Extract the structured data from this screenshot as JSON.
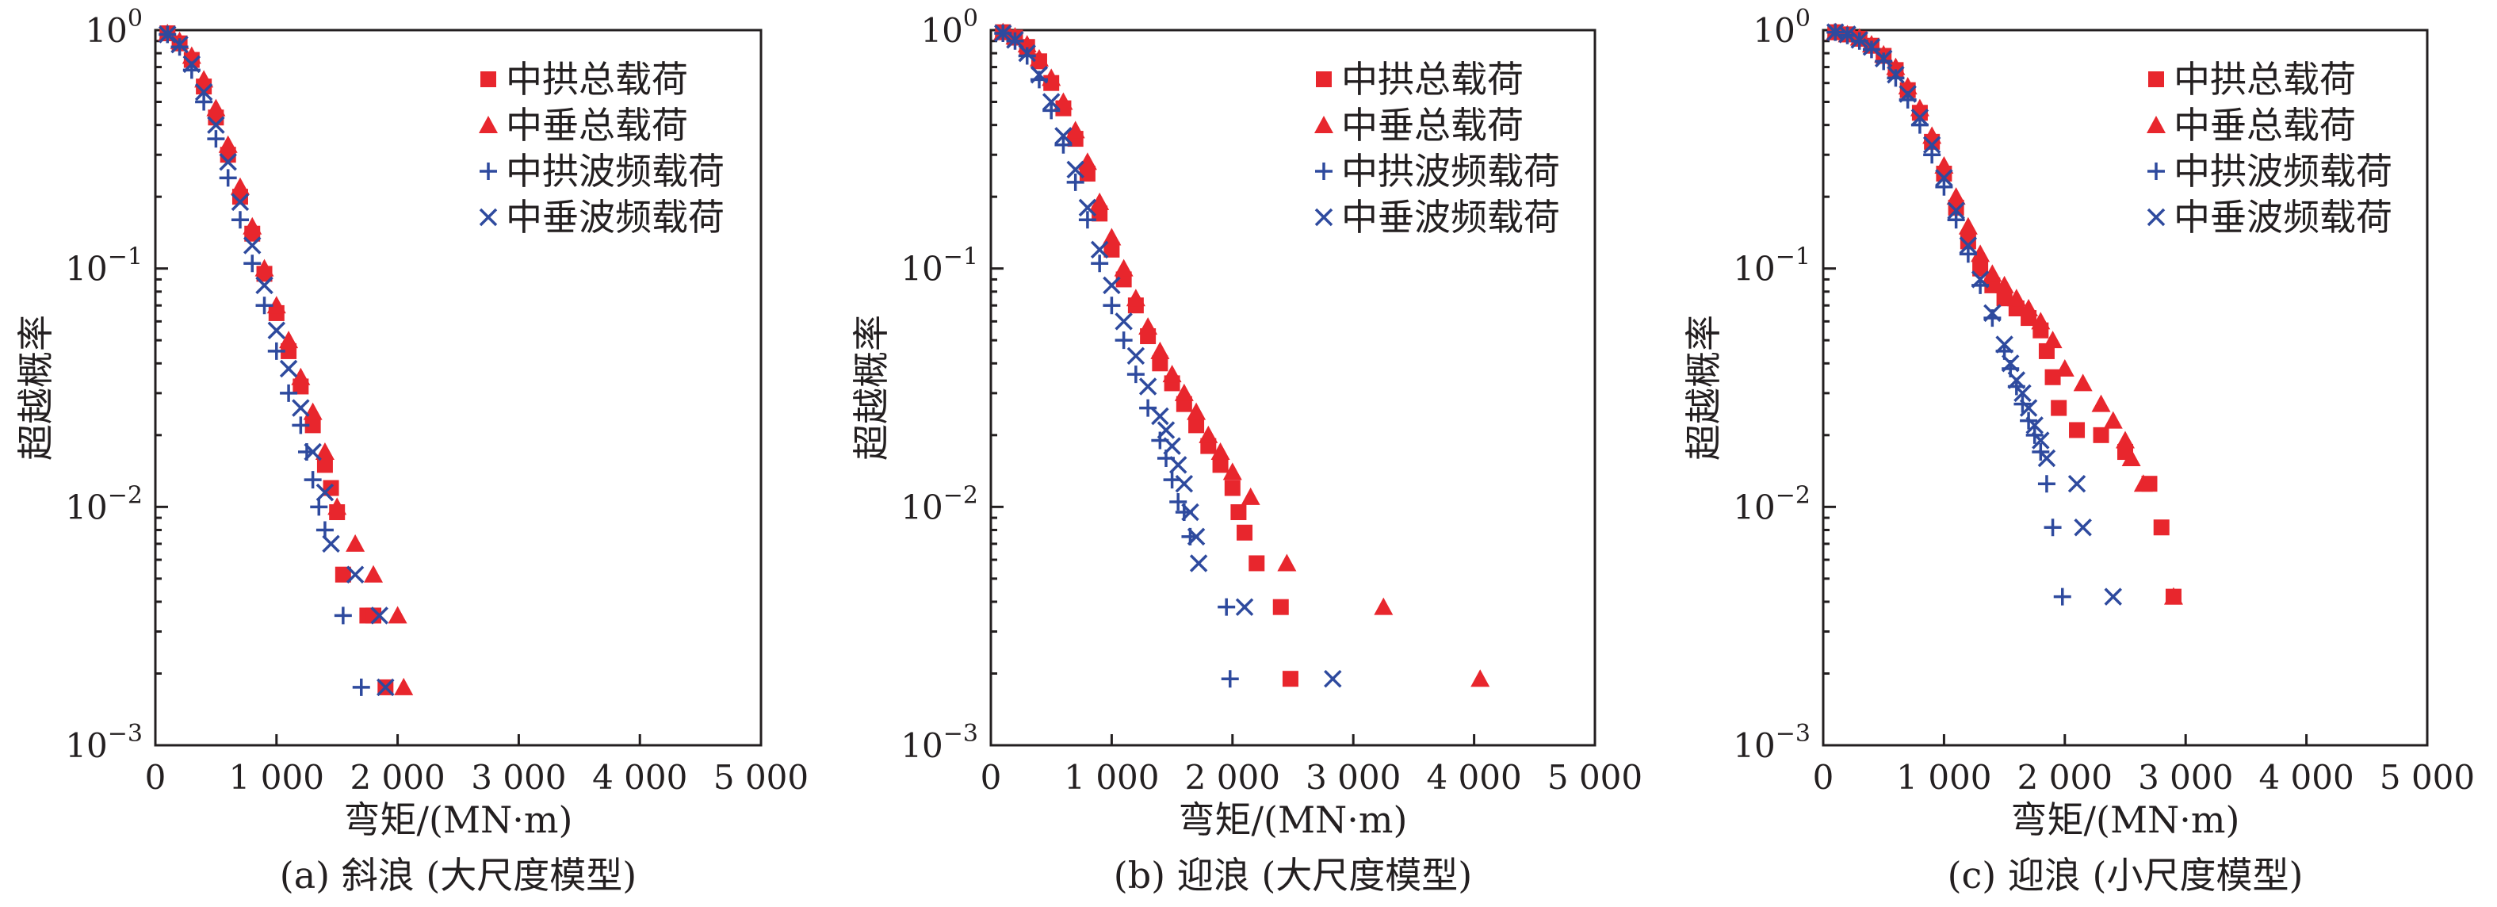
{
  "colors": {
    "total": "#e8262d",
    "wave": "#2e4a9e",
    "axis": "#231f20"
  },
  "legend": [
    "中拱总载荷",
    "中垂总载荷",
    "中拱波频载荷",
    "中垂波频载荷"
  ],
  "chart_data": [
    {
      "type": "scatter",
      "caption": "(a) 斜浪 (大尺度模型)",
      "xlabel": "弯矩/(MN·m)",
      "ylabel": "超越概率",
      "xlim": [
        0,
        5000
      ],
      "ylim": [
        0.001,
        1
      ],
      "yscale": "log",
      "xticks": [
        0,
        1000,
        2000,
        3000,
        4000,
        5000
      ],
      "xtick_labels": [
        "0",
        "1 000",
        "2 000",
        "3 000",
        "4 000",
        "5 000"
      ],
      "yticks": [
        0.001,
        0.01,
        0.1,
        1
      ],
      "ytick_labels": [
        {
          "base": "10",
          "exp": "−3"
        },
        {
          "base": "10",
          "exp": "−2"
        },
        {
          "base": "10",
          "exp": "−1"
        },
        {
          "base": "10",
          "exp": "0"
        }
      ],
      "legend_position": "top-right",
      "series": [
        {
          "name": "中拱总载荷",
          "marker": "square",
          "color": "#e8262d",
          "x": [
            100,
            200,
            300,
            400,
            500,
            600,
            700,
            800,
            900,
            1000,
            1100,
            1200,
            1300,
            1400,
            1450,
            1500,
            1550,
            1750,
            1800,
            1900
          ],
          "y": [
            0.97,
            0.88,
            0.75,
            0.58,
            0.43,
            0.3,
            0.2,
            0.14,
            0.095,
            0.065,
            0.045,
            0.032,
            0.022,
            0.015,
            0.012,
            0.0095,
            0.0052,
            0.0035,
            0.0035,
            0.00175
          ]
        },
        {
          "name": "中垂总载荷",
          "marker": "triangle",
          "color": "#e8262d",
          "x": [
            100,
            200,
            300,
            400,
            500,
            600,
            700,
            800,
            900,
            1000,
            1100,
            1200,
            1300,
            1400,
            1500,
            1650,
            1800,
            2000,
            2050
          ],
          "y": [
            0.97,
            0.9,
            0.78,
            0.62,
            0.47,
            0.33,
            0.22,
            0.15,
            0.1,
            0.07,
            0.05,
            0.035,
            0.025,
            0.017,
            0.01,
            0.007,
            0.0052,
            0.0035,
            0.00175
          ]
        },
        {
          "name": "中拱波频载荷",
          "marker": "plus",
          "color": "#2e4a9e",
          "x": [
            100,
            200,
            300,
            400,
            500,
            600,
            700,
            800,
            900,
            1000,
            1100,
            1200,
            1250,
            1300,
            1350,
            1400,
            1550,
            1700
          ],
          "y": [
            0.96,
            0.85,
            0.68,
            0.5,
            0.35,
            0.24,
            0.16,
            0.105,
            0.07,
            0.045,
            0.03,
            0.022,
            0.017,
            0.013,
            0.01,
            0.008,
            0.0035,
            0.00175
          ]
        },
        {
          "name": "中垂波频载荷",
          "marker": "x",
          "color": "#2e4a9e",
          "x": [
            100,
            200,
            300,
            400,
            500,
            600,
            700,
            800,
            900,
            1000,
            1100,
            1200,
            1300,
            1400,
            1450,
            1650,
            1850,
            1900
          ],
          "y": [
            0.96,
            0.87,
            0.72,
            0.55,
            0.4,
            0.28,
            0.19,
            0.125,
            0.085,
            0.055,
            0.038,
            0.026,
            0.017,
            0.0115,
            0.007,
            0.0052,
            0.0035,
            0.00175
          ]
        }
      ]
    },
    {
      "type": "scatter",
      "caption": "(b) 迎浪 (大尺度模型)",
      "xlabel": "弯矩/(MN·m)",
      "ylabel": "超越概率",
      "xlim": [
        0,
        5000
      ],
      "ylim": [
        0.001,
        1
      ],
      "yscale": "log",
      "xticks": [
        0,
        1000,
        2000,
        3000,
        4000,
        5000
      ],
      "xtick_labels": [
        "0",
        "1 000",
        "2 000",
        "3 000",
        "4 000",
        "5 000"
      ],
      "yticks": [
        0.001,
        0.01,
        0.1,
        1
      ],
      "ytick_labels": [
        {
          "base": "10",
          "exp": "−3"
        },
        {
          "base": "10",
          "exp": "−2"
        },
        {
          "base": "10",
          "exp": "−1"
        },
        {
          "base": "10",
          "exp": "0"
        }
      ],
      "legend_position": "top-right",
      "series": [
        {
          "name": "中拱总载荷",
          "marker": "square",
          "color": "#e8262d",
          "x": [
            100,
            200,
            300,
            400,
            500,
            600,
            700,
            800,
            900,
            1000,
            1100,
            1200,
            1300,
            1400,
            1500,
            1600,
            1700,
            1800,
            1900,
            2000,
            2050,
            2100,
            2200,
            2400,
            2480
          ],
          "y": [
            0.98,
            0.93,
            0.85,
            0.74,
            0.6,
            0.47,
            0.35,
            0.25,
            0.17,
            0.12,
            0.09,
            0.07,
            0.052,
            0.04,
            0.033,
            0.027,
            0.022,
            0.018,
            0.015,
            0.012,
            0.0095,
            0.0078,
            0.0058,
            0.0038,
            0.0019
          ]
        },
        {
          "name": "中垂总载荷",
          "marker": "triangle",
          "color": "#e8262d",
          "x": [
            100,
            200,
            300,
            400,
            500,
            600,
            700,
            800,
            900,
            1000,
            1100,
            1200,
            1300,
            1400,
            1500,
            1600,
            1700,
            1800,
            1900,
            2000,
            2150,
            2450,
            3250,
            4050
          ],
          "y": [
            0.98,
            0.94,
            0.87,
            0.76,
            0.63,
            0.5,
            0.38,
            0.28,
            0.19,
            0.135,
            0.1,
            0.075,
            0.057,
            0.045,
            0.036,
            0.03,
            0.025,
            0.02,
            0.017,
            0.014,
            0.011,
            0.0058,
            0.0038,
            0.0019
          ]
        },
        {
          "name": "中拱波频载荷",
          "marker": "plus",
          "color": "#2e4a9e",
          "x": [
            100,
            200,
            300,
            400,
            500,
            600,
            700,
            800,
            900,
            1000,
            1100,
            1200,
            1300,
            1400,
            1450,
            1500,
            1550,
            1600,
            1650,
            1950,
            1980
          ],
          "y": [
            0.97,
            0.9,
            0.78,
            0.62,
            0.46,
            0.33,
            0.23,
            0.16,
            0.105,
            0.07,
            0.05,
            0.036,
            0.026,
            0.019,
            0.016,
            0.013,
            0.0105,
            0.0095,
            0.0075,
            0.0038,
            0.0019
          ]
        },
        {
          "name": "中垂波频载荷",
          "marker": "x",
          "color": "#2e4a9e",
          "x": [
            100,
            200,
            300,
            400,
            500,
            600,
            700,
            800,
            900,
            1000,
            1100,
            1200,
            1300,
            1400,
            1450,
            1500,
            1550,
            1600,
            1650,
            1700,
            1720,
            2100,
            2830
          ],
          "y": [
            0.97,
            0.91,
            0.8,
            0.65,
            0.5,
            0.36,
            0.26,
            0.18,
            0.12,
            0.085,
            0.06,
            0.043,
            0.032,
            0.024,
            0.021,
            0.018,
            0.015,
            0.0125,
            0.0095,
            0.0075,
            0.0058,
            0.0038,
            0.0019
          ]
        }
      ]
    },
    {
      "type": "scatter",
      "caption": "(c) 迎浪 (小尺度模型)",
      "xlabel": "弯矩/(MN·m)",
      "ylabel": "超越概率",
      "xlim": [
        0,
        5000
      ],
      "ylim": [
        0.001,
        1
      ],
      "yscale": "log",
      "xticks": [
        0,
        1000,
        2000,
        3000,
        4000,
        5000
      ],
      "xtick_labels": [
        "0",
        "1 000",
        "2 000",
        "3 000",
        "4 000",
        "5 000"
      ],
      "yticks": [
        0.001,
        0.01,
        0.1,
        1
      ],
      "ytick_labels": [
        {
          "base": "10",
          "exp": "−3"
        },
        {
          "base": "10",
          "exp": "−2"
        },
        {
          "base": "10",
          "exp": "−1"
        },
        {
          "base": "10",
          "exp": "0"
        }
      ],
      "legend_position": "top-right",
      "series": [
        {
          "name": "中拱总载荷",
          "marker": "square",
          "color": "#e8262d",
          "x": [
            100,
            200,
            300,
            400,
            500,
            600,
            700,
            800,
            900,
            1000,
            1100,
            1200,
            1300,
            1400,
            1500,
            1600,
            1700,
            1800,
            1850,
            1900,
            1950,
            2100,
            2300,
            2500,
            2700,
            2800,
            2900
          ],
          "y": [
            0.98,
            0.96,
            0.92,
            0.86,
            0.78,
            0.68,
            0.56,
            0.45,
            0.34,
            0.25,
            0.18,
            0.13,
            0.1,
            0.085,
            0.075,
            0.068,
            0.062,
            0.055,
            0.045,
            0.035,
            0.026,
            0.021,
            0.02,
            0.017,
            0.0125,
            0.0082,
            0.0042
          ]
        },
        {
          "name": "中垂总载荷",
          "marker": "triangle",
          "color": "#e8262d",
          "x": [
            100,
            200,
            300,
            400,
            500,
            600,
            700,
            800,
            900,
            1000,
            1100,
            1200,
            1300,
            1400,
            1500,
            1600,
            1700,
            1800,
            1900,
            2000,
            2150,
            2300,
            2400,
            2500,
            2550,
            2650,
            2900
          ],
          "y": [
            0.98,
            0.96,
            0.93,
            0.87,
            0.79,
            0.7,
            0.58,
            0.47,
            0.36,
            0.27,
            0.2,
            0.15,
            0.115,
            0.095,
            0.085,
            0.075,
            0.068,
            0.06,
            0.05,
            0.038,
            0.033,
            0.027,
            0.023,
            0.019,
            0.016,
            0.0125,
            0.0042
          ]
        },
        {
          "name": "中拱波频载荷",
          "marker": "plus",
          "color": "#2e4a9e",
          "x": [
            100,
            200,
            300,
            400,
            500,
            600,
            700,
            800,
            900,
            1000,
            1100,
            1200,
            1300,
            1400,
            1500,
            1550,
            1600,
            1650,
            1700,
            1750,
            1800,
            1850,
            1900,
            1980
          ],
          "y": [
            0.98,
            0.95,
            0.9,
            0.83,
            0.74,
            0.63,
            0.51,
            0.4,
            0.3,
            0.22,
            0.16,
            0.115,
            0.085,
            0.062,
            0.045,
            0.038,
            0.032,
            0.027,
            0.023,
            0.02,
            0.017,
            0.0125,
            0.0082,
            0.0042
          ]
        },
        {
          "name": "中垂波频载荷",
          "marker": "x",
          "color": "#2e4a9e",
          "x": [
            100,
            200,
            300,
            400,
            500,
            600,
            700,
            800,
            900,
            1000,
            1100,
            1200,
            1300,
            1400,
            1500,
            1550,
            1600,
            1650,
            1700,
            1750,
            1800,
            1850,
            2100,
            2150,
            2400
          ],
          "y": [
            0.98,
            0.96,
            0.91,
            0.85,
            0.76,
            0.65,
            0.54,
            0.43,
            0.33,
            0.24,
            0.175,
            0.125,
            0.09,
            0.065,
            0.048,
            0.04,
            0.034,
            0.03,
            0.026,
            0.022,
            0.019,
            0.016,
            0.0125,
            0.0082,
            0.0042
          ]
        }
      ]
    }
  ]
}
